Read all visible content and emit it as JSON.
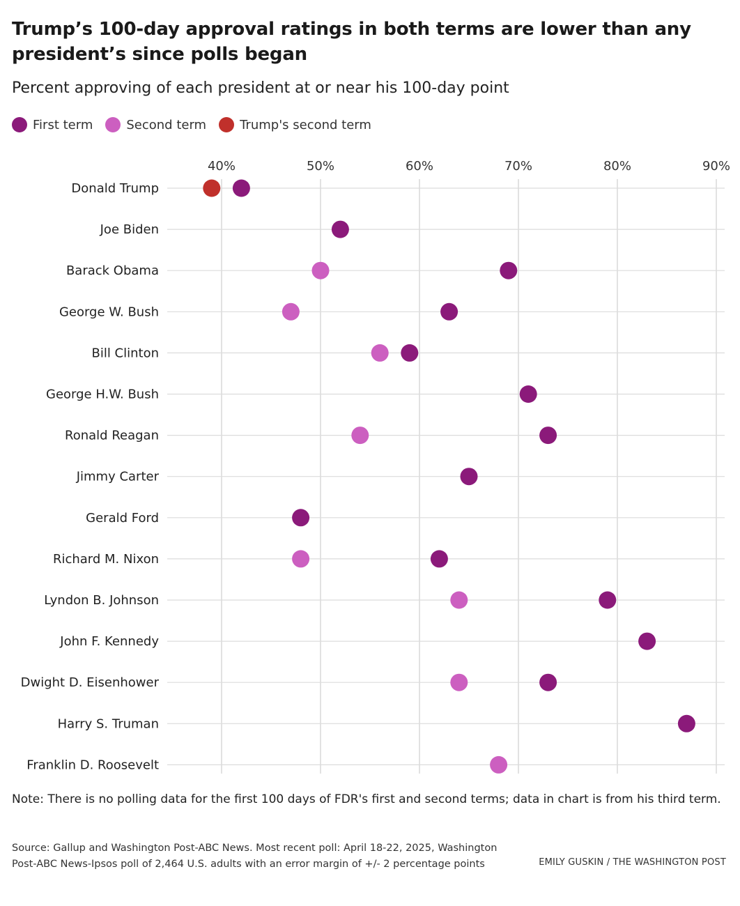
{
  "title": "Trump’s 100-day approval ratings in both terms are lower than any president’s since polls began",
  "subtitle": "Percent approving of each president at or near his 100-day point",
  "legend": [
    {
      "label": "First term",
      "color": "#8b1a7a"
    },
    {
      "label": "Second term",
      "color": "#cc5fc0"
    },
    {
      "label": "Trump's second term",
      "color": "#c0302b"
    }
  ],
  "chart_data": {
    "type": "scatter",
    "x_ticks": [
      "40%",
      "50%",
      "60%",
      "70%",
      "80%",
      "90%"
    ],
    "x_tick_values": [
      40,
      50,
      60,
      70,
      80,
      90
    ],
    "xlim": [
      33,
      91
    ],
    "grid": true,
    "legend_position": "top-left",
    "categories": [
      "Donald Trump",
      "Joe Biden",
      "Barack Obama",
      "George W. Bush",
      "Bill Clinton",
      "George H.W. Bush",
      "Ronald Reagan",
      "Jimmy Carter",
      "Gerald Ford",
      "Richard M. Nixon",
      "Lyndon B. Johnson",
      "John F. Kennedy",
      "Dwight D. Eisenhower",
      "Harry S. Truman",
      "Franklin D. Roosevelt"
    ],
    "series": [
      {
        "name": "First term",
        "color": "#8b1a7a",
        "values": [
          42,
          52,
          69,
          63,
          59,
          71,
          73,
          65,
          48,
          62,
          79,
          83,
          73,
          87,
          null
        ]
      },
      {
        "name": "Second term",
        "color": "#cc5fc0",
        "values": [
          null,
          null,
          50,
          47,
          56,
          null,
          54,
          null,
          null,
          48,
          64,
          null,
          64,
          null,
          68
        ]
      },
      {
        "name": "Trump's second term",
        "color": "#c0302b",
        "values": [
          39,
          null,
          null,
          null,
          null,
          null,
          null,
          null,
          null,
          null,
          null,
          null,
          null,
          null,
          null
        ]
      }
    ]
  },
  "note": "Note: There is no polling data for the first 100 days of FDR's first and second terms; data in chart is from his third term.",
  "source": "Source: Gallup and Washington Post-ABC News. Most recent poll: April 18-22, 2025, Washington Post-ABC News-Ipsos poll of 2,464 U.S. adults with an error margin of +/- 2 percentage points",
  "credit": "EMILY GUSKIN / THE WASHINGTON POST"
}
